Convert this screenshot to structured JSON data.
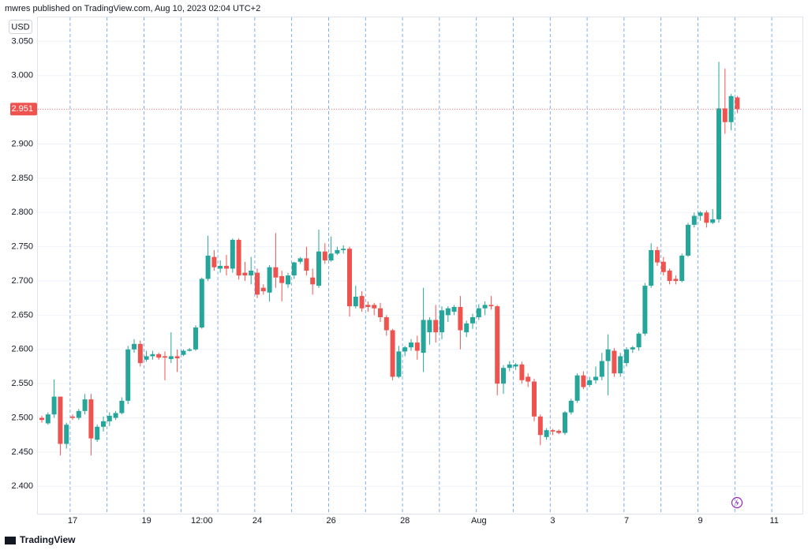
{
  "header": "mwres published on TradingView.com, Aug 10, 2023 02:04 UTC+2",
  "footer": "TradingView",
  "chart_data": {
    "type": "candlestick",
    "currency": "USD",
    "up_color": "#26a69a",
    "down_color": "#ef5350",
    "grid": true,
    "categories": [
      null,
      null,
      null,
      null,
      null,
      "17",
      null,
      null,
      null,
      null,
      null,
      null,
      null,
      null,
      null,
      null,
      null,
      "19",
      null,
      null,
      null,
      null,
      null,
      null,
      null,
      null,
      "12:00",
      null,
      null,
      null,
      null,
      null,
      null,
      null,
      null,
      "24",
      null,
      null,
      null,
      null,
      null,
      null,
      null,
      null,
      null,
      null,
      null,
      "26",
      null,
      null,
      null,
      null,
      null,
      null,
      null,
      null,
      null,
      null,
      null,
      "28",
      null,
      null,
      null,
      null,
      null,
      null,
      null,
      null,
      null,
      null,
      null,
      "Aug",
      null,
      null,
      null,
      null,
      null,
      null,
      null,
      null,
      null,
      null,
      null,
      "3",
      null,
      null,
      null,
      null,
      null,
      null,
      null,
      null,
      null,
      null,
      null,
      "7",
      null,
      null,
      null,
      null,
      null,
      null,
      null,
      null,
      null,
      null,
      null,
      "9",
      null,
      null,
      null,
      null,
      null,
      null,
      null,
      null,
      null,
      null,
      null,
      "11"
    ],
    "open": [
      2.5,
      2.492,
      2.505,
      2.531,
      2.462,
      2.502,
      2.5,
      2.51,
      2.527,
      2.468,
      2.487,
      2.495,
      2.5,
      2.507,
      2.525,
      2.6,
      2.608,
      2.585,
      2.59,
      2.593,
      2.59,
      2.586,
      2.59,
      2.592,
      2.598,
      2.6,
      2.632,
      2.703,
      2.735,
      2.718,
      2.722,
      2.718,
      2.76,
      2.712,
      2.708,
      2.712,
      2.69,
      2.683,
      2.72,
      2.707,
      2.695,
      2.708,
      2.728,
      2.733,
      2.705,
      2.693,
      2.743,
      2.73,
      2.74,
      2.745,
      2.747,
      2.663,
      2.678,
      2.665,
      2.665,
      2.66,
      2.647,
      2.628,
      2.56,
      2.597,
      2.603,
      2.61,
      2.595,
      2.625,
      2.643,
      2.625,
      2.65,
      2.655,
      2.662,
      2.625,
      2.638,
      2.647,
      2.66,
      2.665,
      2.663,
      2.55,
      2.573,
      2.575,
      2.578,
      2.56,
      2.553,
      2.502,
      2.472,
      2.482,
      2.481,
      2.478,
      2.508,
      2.525,
      2.562,
      2.548,
      2.555,
      2.56,
      2.583,
      2.598,
      2.565,
      2.58,
      2.6,
      2.603,
      2.623,
      2.693,
      2.745,
      2.728,
      2.715,
      2.703,
      2.7,
      2.737,
      2.782,
      2.795,
      2.8,
      2.785,
      2.79,
      2.952,
      2.932,
      2.968,
      null,
      null,
      null,
      null,
      null,
      null
    ],
    "high": [
      2.503,
      2.508,
      2.556,
      2.531,
      2.493,
      2.505,
      2.513,
      2.535,
      2.535,
      2.49,
      2.502,
      2.508,
      2.51,
      2.53,
      2.605,
      2.615,
      2.613,
      2.598,
      2.598,
      2.595,
      2.597,
      2.625,
      2.6,
      2.6,
      2.602,
      2.635,
      2.705,
      2.766,
      2.745,
      2.73,
      2.738,
      2.762,
      2.762,
      2.728,
      2.735,
      2.718,
      2.695,
      2.723,
      2.77,
      2.715,
      2.712,
      2.728,
      2.735,
      2.75,
      2.718,
      2.775,
      2.755,
      2.765,
      2.75,
      2.752,
      2.75,
      2.693,
      2.685,
      2.67,
      2.668,
      2.668,
      2.65,
      2.63,
      2.605,
      2.605,
      2.615,
      2.62,
      2.69,
      2.647,
      2.665,
      2.663,
      2.663,
      2.665,
      2.678,
      2.642,
      2.652,
      2.666,
      2.67,
      2.678,
      2.665,
      2.577,
      2.583,
      2.58,
      2.582,
      2.565,
      2.557,
      2.505,
      2.485,
      2.484,
      2.483,
      2.51,
      2.528,
      2.565,
      2.568,
      2.56,
      2.575,
      2.595,
      2.622,
      2.602,
      2.595,
      2.603,
      2.605,
      2.625,
      2.697,
      2.755,
      2.75,
      2.735,
      2.718,
      2.708,
      2.74,
      2.785,
      2.8,
      2.802,
      2.803,
      2.805,
      3.02,
      3.01,
      2.973,
      2.97,
      null,
      null,
      null,
      null,
      null,
      null
    ],
    "low": [
      2.493,
      2.49,
      2.5,
      2.445,
      2.455,
      2.497,
      2.497,
      2.505,
      2.445,
      2.465,
      2.48,
      2.488,
      2.497,
      2.505,
      2.52,
      2.595,
      2.575,
      2.582,
      2.585,
      2.585,
      2.555,
      2.58,
      2.567,
      2.59,
      2.597,
      2.598,
      2.63,
      2.7,
      2.715,
      2.712,
      2.708,
      2.712,
      2.702,
      2.7,
      2.695,
      2.675,
      2.68,
      2.67,
      2.69,
      2.67,
      2.69,
      2.703,
      2.725,
      2.708,
      2.68,
      2.69,
      2.725,
      2.728,
      2.738,
      2.74,
      2.648,
      2.66,
      2.655,
      2.655,
      2.65,
      2.64,
      2.62,
      2.555,
      2.558,
      2.59,
      2.598,
      2.585,
      2.567,
      2.607,
      2.61,
      2.615,
      2.64,
      2.65,
      2.6,
      2.618,
      2.63,
      2.643,
      2.65,
      2.658,
      2.533,
      2.535,
      2.568,
      2.57,
      2.55,
      2.545,
      2.495,
      2.46,
      2.468,
      2.475,
      2.476,
      2.475,
      2.505,
      2.522,
      2.542,
      2.545,
      2.55,
      2.555,
      2.533,
      2.56,
      2.56,
      2.575,
      2.595,
      2.598,
      2.62,
      2.69,
      2.722,
      2.708,
      2.695,
      2.695,
      2.698,
      2.735,
      2.778,
      2.788,
      2.778,
      2.783,
      2.785,
      2.915,
      2.92,
      2.945,
      null,
      null,
      null,
      null,
      null,
      null
    ],
    "close": [
      2.497,
      2.505,
      2.531,
      2.462,
      2.49,
      2.5,
      2.51,
      2.527,
      2.47,
      2.487,
      2.495,
      2.503,
      2.507,
      2.525,
      2.6,
      2.608,
      2.58,
      2.59,
      2.593,
      2.588,
      2.588,
      2.59,
      2.587,
      2.598,
      2.6,
      2.632,
      2.703,
      2.737,
      2.72,
      2.722,
      2.718,
      2.76,
      2.708,
      2.708,
      2.715,
      2.68,
      2.685,
      2.72,
      2.705,
      2.697,
      2.708,
      2.727,
      2.733,
      2.715,
      2.695,
      2.743,
      2.73,
      2.74,
      2.745,
      2.747,
      2.663,
      2.677,
      2.66,
      2.662,
      2.66,
      2.647,
      2.628,
      2.56,
      2.597,
      2.603,
      2.61,
      2.598,
      2.643,
      2.643,
      2.625,
      2.657,
      2.66,
      2.662,
      2.628,
      2.638,
      2.647,
      2.66,
      2.665,
      2.663,
      2.55,
      2.573,
      2.578,
      2.578,
      2.555,
      2.553,
      2.502,
      2.475,
      2.482,
      2.48,
      2.478,
      2.508,
      2.525,
      2.562,
      2.545,
      2.555,
      2.56,
      2.583,
      2.6,
      2.565,
      2.59,
      2.6,
      2.603,
      2.623,
      2.693,
      2.745,
      2.727,
      2.713,
      2.7,
      2.7,
      2.737,
      2.782,
      2.795,
      2.8,
      2.785,
      2.79,
      2.952,
      2.932,
      2.97,
      2.951,
      null,
      null,
      null,
      null,
      null,
      null
    ],
    "last_price": {
      "value": 2.951,
      "label": "2.951"
    },
    "ylim": [
      2.36,
      3.085
    ],
    "yticks": [
      {
        "value": 2.4,
        "label": "2.400"
      },
      {
        "value": 2.45,
        "label": "2.450"
      },
      {
        "value": 2.5,
        "label": "2.500"
      },
      {
        "value": 2.55,
        "label": "2.550"
      },
      {
        "value": 2.6,
        "label": "2.600"
      },
      {
        "value": 2.65,
        "label": "2.650"
      },
      {
        "value": 2.7,
        "label": "2.700"
      },
      {
        "value": 2.75,
        "label": "2.750"
      },
      {
        "value": 2.8,
        "label": "2.800"
      },
      {
        "value": 2.85,
        "label": "2.850"
      },
      {
        "value": 2.9,
        "label": "2.900"
      },
      {
        "value": 2.95,
        "label": "2.950"
      },
      {
        "value": 3.0,
        "label": "3.000"
      },
      {
        "value": 3.05,
        "label": "3.050"
      }
    ]
  }
}
